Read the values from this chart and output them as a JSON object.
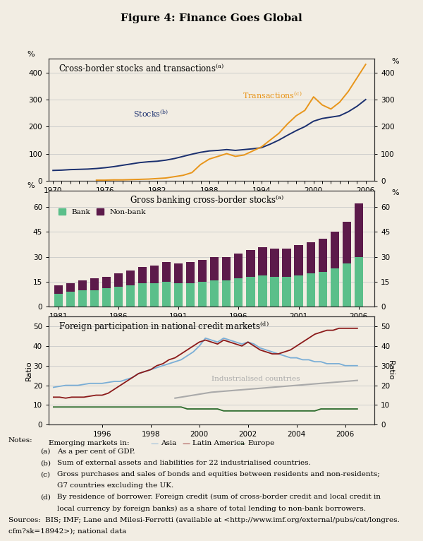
{
  "title": "Figure 4: Finance Goes Global",
  "panel1": {
    "title": "Cross-border stocks and transactions",
    "title_sup": "(a)",
    "ylabel_left": "%",
    "ylabel_right": "%",
    "ylim": [
      0,
      450
    ],
    "yticks": [
      0,
      100,
      200,
      300,
      400
    ],
    "xlim": [
      1969.5,
      2007
    ],
    "xticks": [
      1970,
      1976,
      1982,
      1988,
      1994,
      2000,
      2006
    ],
    "stocks_years": [
      1970,
      1971,
      1972,
      1973,
      1974,
      1975,
      1976,
      1977,
      1978,
      1979,
      1980,
      1981,
      1982,
      1983,
      1984,
      1985,
      1986,
      1987,
      1988,
      1989,
      1990,
      1991,
      1992,
      1993,
      1994,
      1995,
      1996,
      1997,
      1998,
      1999,
      2000,
      2001,
      2002,
      2003,
      2004,
      2005,
      2006
    ],
    "stocks_values": [
      38,
      39,
      41,
      42,
      43,
      45,
      48,
      52,
      57,
      62,
      67,
      70,
      72,
      76,
      82,
      90,
      98,
      105,
      110,
      112,
      115,
      112,
      115,
      118,
      122,
      135,
      150,
      168,
      185,
      200,
      220,
      230,
      235,
      240,
      255,
      275,
      300
    ],
    "stocks_color": "#1a2f6e",
    "stocks_label": "Stocks",
    "stocks_label_sup": "(b)",
    "transactions_years": [
      1975,
      1976,
      1977,
      1978,
      1979,
      1980,
      1981,
      1982,
      1983,
      1984,
      1985,
      1986,
      1987,
      1988,
      1989,
      1990,
      1991,
      1992,
      1993,
      1994,
      1995,
      1996,
      1997,
      1998,
      1999,
      2000,
      2001,
      2002,
      2003,
      2004,
      2005,
      2006
    ],
    "transactions_values": [
      2,
      2,
      3,
      3,
      4,
      5,
      6,
      8,
      10,
      15,
      20,
      30,
      60,
      80,
      90,
      100,
      90,
      95,
      110,
      125,
      150,
      175,
      210,
      240,
      260,
      310,
      280,
      265,
      290,
      330,
      380,
      430
    ],
    "transactions_color": "#e8951a",
    "transactions_label": "Transactions",
    "transactions_label_sup": "(c)"
  },
  "panel2": {
    "title": "Gross banking cross-border stocks",
    "title_sup": "(a)",
    "ylabel_left": "%",
    "ylabel_right": "%",
    "ylim": [
      0,
      70
    ],
    "yticks": [
      0,
      15,
      30,
      45,
      60
    ],
    "xlim": [
      1980.2,
      2007.3
    ],
    "xticks": [
      1981,
      1986,
      1991,
      1996,
      2001,
      2006
    ],
    "years": [
      1981,
      1982,
      1983,
      1984,
      1985,
      1986,
      1987,
      1988,
      1989,
      1990,
      1991,
      1992,
      1993,
      1994,
      1995,
      1996,
      1997,
      1998,
      1999,
      2000,
      2001,
      2002,
      2003,
      2004,
      2005,
      2006
    ],
    "bank_values": [
      8,
      9,
      10,
      10,
      11,
      12,
      13,
      14,
      14,
      15,
      14,
      14,
      15,
      16,
      16,
      17,
      18,
      19,
      18,
      18,
      19,
      20,
      21,
      23,
      26,
      30
    ],
    "nonbank_values": [
      5,
      5,
      6,
      7,
      7,
      8,
      9,
      10,
      11,
      12,
      12,
      13,
      13,
      14,
      14,
      15,
      16,
      17,
      17,
      17,
      18,
      19,
      20,
      22,
      25,
      32
    ],
    "bank_color": "#5bbf8a",
    "nonbank_color": "#5c1a4a",
    "bank_label": "Bank",
    "nonbank_label": "Non-bank"
  },
  "panel3": {
    "title": "Foreign participation in national credit markets",
    "title_sup": "(d)",
    "ylabel_left": "Ratio",
    "ylabel_right": "Ratio",
    "ylim": [
      0,
      55
    ],
    "yticks": [
      0,
      10,
      20,
      30,
      40,
      50
    ],
    "xlim": [
      1993.8,
      2007.2
    ],
    "xticks": [
      1996,
      1998,
      2000,
      2002,
      2004,
      2006
    ],
    "industrialised_label": "Industrialised countries",
    "industrialised_color": "#aaaaaa",
    "asia_color": "#7aaed6",
    "latam_color": "#8b1a1a",
    "europe_color": "#2a6a2a",
    "years_em": [
      1994,
      1994.25,
      1994.5,
      1994.75,
      1995,
      1995.25,
      1995.5,
      1995.75,
      1996,
      1996.25,
      1996.5,
      1996.75,
      1997,
      1997.25,
      1997.5,
      1997.75,
      1998,
      1998.25,
      1998.5,
      1998.75,
      1999,
      1999.25,
      1999.5,
      1999.75,
      2000,
      2000.25,
      2000.5,
      2000.75,
      2001,
      2001.25,
      2001.5,
      2001.75,
      2002,
      2002.25,
      2002.5,
      2002.75,
      2003,
      2003.25,
      2003.5,
      2003.75,
      2004,
      2004.25,
      2004.5,
      2004.75,
      2005,
      2005.25,
      2005.5,
      2005.75,
      2006,
      2006.25,
      2006.5
    ],
    "asia_values": [
      19,
      19.5,
      20,
      20,
      20,
      20.5,
      21,
      21,
      21,
      21.5,
      22,
      22,
      23,
      24,
      26,
      27,
      28,
      29,
      30,
      31,
      32,
      33,
      35,
      37,
      40,
      44,
      43,
      42,
      44,
      43,
      42,
      41,
      42,
      41,
      39,
      38,
      37,
      36,
      35,
      34,
      34,
      33,
      33,
      32,
      32,
      31,
      31,
      31,
      30,
      30,
      30
    ],
    "latam_values": [
      14,
      14,
      13.5,
      14,
      14,
      14,
      14.5,
      15,
      15,
      16,
      18,
      20,
      22,
      24,
      26,
      27,
      28,
      30,
      31,
      33,
      34,
      36,
      38,
      40,
      42,
      43,
      42,
      41,
      43,
      42,
      41,
      40,
      42,
      40,
      38,
      37,
      36,
      36,
      37,
      38,
      40,
      42,
      44,
      46,
      47,
      48,
      48,
      49,
      49,
      49,
      49
    ],
    "europe_values": [
      9,
      9,
      9,
      9,
      9,
      9,
      9,
      9,
      9,
      9,
      9,
      9,
      9,
      9,
      9,
      9,
      9,
      9,
      9,
      9,
      9,
      9,
      8,
      8,
      8,
      8,
      8,
      8,
      7,
      7,
      7,
      7,
      7,
      7,
      7,
      7,
      7,
      7,
      7,
      7,
      7,
      7,
      7,
      7,
      8,
      8,
      8,
      8,
      8,
      8,
      8
    ],
    "years_ind": [
      1999,
      1999.5,
      2000,
      2000.5,
      2001,
      2001.5,
      2002,
      2002.5,
      2003,
      2003.5,
      2004,
      2004.5,
      2005,
      2005.5,
      2006,
      2006.5
    ],
    "ind_values": [
      13.5,
      14.5,
      15.5,
      16.5,
      17,
      17.5,
      18,
      18.5,
      19,
      19.5,
      20,
      20.5,
      21,
      21.5,
      22,
      22.5
    ]
  },
  "background_color": "#f2ede3",
  "plot_bg_color": "#f2ede3",
  "grid_color": "#c8c8c8"
}
